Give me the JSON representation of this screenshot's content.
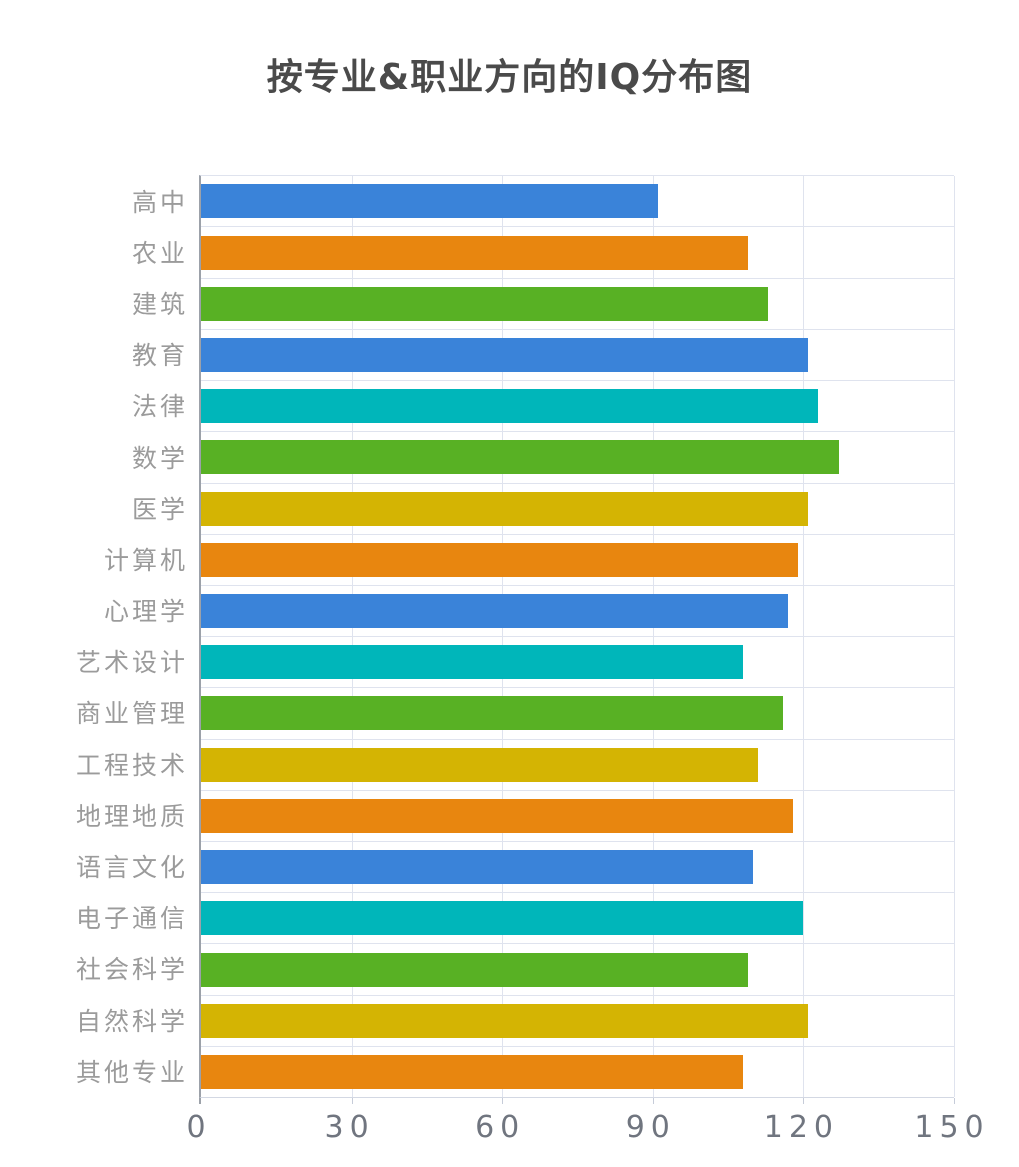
{
  "chart": {
    "title": "按专业&职业方向的IQ分布图"
  },
  "chart_data": {
    "type": "bar",
    "orientation": "horizontal",
    "title": "按专业&职业方向的IQ分布图",
    "categories": [
      "高中",
      "农业",
      "建筑",
      "教育",
      "法律",
      "数学",
      "医学",
      "计算机",
      "心理学",
      "艺术设计",
      "商业管理",
      "工程技术",
      "地理地质",
      "语言文化",
      "电子通信",
      "社会科学",
      "自然科学",
      "其他专业"
    ],
    "values": [
      91,
      109,
      113,
      121,
      123,
      127,
      121,
      119,
      117,
      108,
      116,
      111,
      118,
      110,
      120,
      109,
      121,
      108
    ],
    "bar_colors": [
      "#3a83d9",
      "#e8860f",
      "#58b124",
      "#3a83d9",
      "#00b6ba",
      "#58b124",
      "#d4b403",
      "#e8860f",
      "#3a83d9",
      "#00b6ba",
      "#58b124",
      "#d4b403",
      "#e8860f",
      "#3a83d9",
      "#00b6ba",
      "#58b124",
      "#d4b403",
      "#e8860f"
    ],
    "xlabel": "",
    "ylabel": "",
    "x_ticks": [
      0,
      30,
      60,
      90,
      120,
      150
    ],
    "xlim": [
      0,
      150
    ],
    "grid": true,
    "legend": false,
    "colors": {
      "blue": "#3a83d9",
      "orange": "#e8860f",
      "green": "#58b124",
      "teal": "#00b6ba",
      "yellow": "#d4b403",
      "title": "#4a4a4a",
      "category_label": "#9b9b9b",
      "tick_label": "#70757f",
      "gridline": "#dfe3ee",
      "axis_line": "#9ca1a9",
      "bottom_line": "#d3d8e3",
      "tick_stub": "#c6ccd9",
      "background": "#ffffff"
    }
  }
}
